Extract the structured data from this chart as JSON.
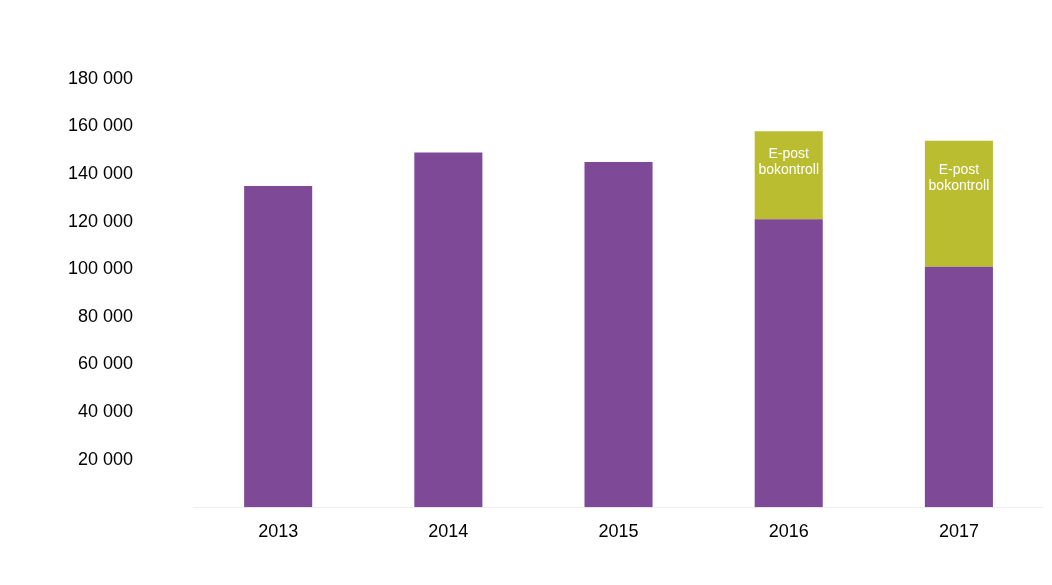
{
  "chart_data": {
    "type": "bar",
    "stacked": true,
    "categories": [
      "2013",
      "2014",
      "2015",
      "2016",
      "2017"
    ],
    "series": [
      {
        "color": "#7e4a98",
        "values": [
          135000,
          149000,
          145000,
          121000,
          101000
        ]
      },
      {
        "name": "E-post bokontroll",
        "color": "#b9bd2f",
        "values": [
          null,
          null,
          null,
          37000,
          53000
        ]
      }
    ],
    "ylim": [
      0,
      180000
    ],
    "yticks": [
      20000,
      40000,
      60000,
      80000,
      100000,
      120000,
      140000,
      160000,
      180000
    ],
    "grid": false,
    "legend": false
  }
}
